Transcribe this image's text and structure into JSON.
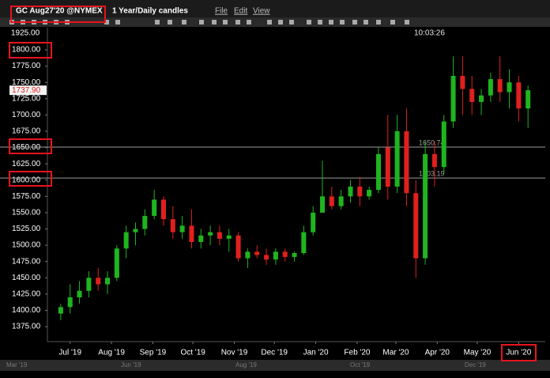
{
  "toolbar": {
    "symbol": "GC Aug27'20 @NYMEX",
    "period": "1 Year/Daily candles",
    "menus": [
      "File",
      "Edit",
      "View"
    ],
    "time": "10:03:26"
  },
  "chart_data": {
    "type": "candlestick",
    "x": [
      0,
      7,
      14,
      21,
      28,
      35,
      42,
      49,
      56,
      63,
      70,
      77,
      84,
      91,
      98,
      105,
      112,
      119,
      126,
      133,
      140,
      147,
      154,
      161,
      168,
      175,
      182,
      189,
      196,
      203,
      210,
      217,
      224,
      231,
      238,
      245,
      252,
      259,
      266,
      273,
      280,
      287,
      294,
      301,
      308,
      315,
      322,
      329,
      336,
      343,
      350
    ],
    "open": [
      1395,
      1405,
      1420,
      1430,
      1450,
      1440,
      1450,
      1495,
      1520,
      1525,
      1545,
      1570,
      1540,
      1520,
      1530,
      1505,
      1515,
      1520,
      1510,
      1515,
      1480,
      1490,
      1485,
      1478,
      1490,
      1482,
      1488,
      1520,
      1550,
      1575,
      1560,
      1575,
      1590,
      1575,
      1585,
      1650,
      1590,
      1675,
      1580,
      1480,
      1640,
      1620,
      1690,
      1760,
      1740,
      1720,
      1730,
      1755,
      1735,
      1750,
      1710
    ],
    "high": [
      1410,
      1440,
      1445,
      1460,
      1465,
      1460,
      1500,
      1530,
      1535,
      1555,
      1585,
      1575,
      1560,
      1545,
      1555,
      1525,
      1530,
      1530,
      1525,
      1520,
      1495,
      1500,
      1495,
      1495,
      1495,
      1490,
      1530,
      1560,
      1630,
      1590,
      1585,
      1600,
      1605,
      1590,
      1650,
      1700,
      1700,
      1710,
      1600,
      1660,
      1660,
      1700,
      1790,
      1790,
      1760,
      1740,
      1765,
      1790,
      1770,
      1760,
      1745
    ],
    "low": [
      1385,
      1395,
      1410,
      1420,
      1430,
      1425,
      1445,
      1480,
      1500,
      1515,
      1540,
      1530,
      1510,
      1510,
      1495,
      1495,
      1500,
      1500,
      1490,
      1475,
      1465,
      1480,
      1470,
      1470,
      1475,
      1475,
      1485,
      1515,
      1550,
      1555,
      1555,
      1565,
      1560,
      1570,
      1580,
      1570,
      1580,
      1560,
      1450,
      1470,
      1590,
      1610,
      1680,
      1700,
      1700,
      1700,
      1720,
      1720,
      1710,
      1690,
      1680
    ],
    "close": [
      1405,
      1420,
      1430,
      1450,
      1440,
      1450,
      1495,
      1520,
      1525,
      1545,
      1570,
      1540,
      1520,
      1530,
      1505,
      1515,
      1520,
      1510,
      1515,
      1480,
      1490,
      1485,
      1478,
      1490,
      1482,
      1488,
      1520,
      1550,
      1575,
      1560,
      1575,
      1590,
      1575,
      1585,
      1640,
      1590,
      1675,
      1580,
      1480,
      1640,
      1620,
      1690,
      1760,
      1740,
      1720,
      1730,
      1755,
      1735,
      1750,
      1710,
      1737.9
    ],
    "up_color": "#1fb51f",
    "down_color": "#e0201e",
    "xlim": [
      -10,
      357
    ],
    "xticks": [
      {
        "value": 7,
        "label": "Jul '19"
      },
      {
        "value": 38,
        "label": "Aug '19"
      },
      {
        "value": 69,
        "label": "Sep '19"
      },
      {
        "value": 99,
        "label": "Oct '19"
      },
      {
        "value": 130,
        "label": "Nov '19"
      },
      {
        "value": 160,
        "label": "Dec '19"
      },
      {
        "value": 191,
        "label": "Jan '20"
      },
      {
        "value": 222,
        "label": "Feb '20"
      },
      {
        "value": 251,
        "label": "Mar '20"
      },
      {
        "value": 282,
        "label": "Apr '20"
      },
      {
        "value": 312,
        "label": "May '20"
      },
      {
        "value": 343,
        "label": "Jun '20"
      }
    ],
    "ylim": [
      1352,
      1834
    ],
    "yticks": [
      {
        "value": 1375,
        "label": "1375.00"
      },
      {
        "value": 1400,
        "label": "1400.00"
      },
      {
        "value": 1425,
        "label": "1425.00"
      },
      {
        "value": 1450,
        "label": "1450.00"
      },
      {
        "value": 1475,
        "label": "1475.00"
      },
      {
        "value": 1500,
        "label": "1500.00"
      },
      {
        "value": 1525,
        "label": "1525.00"
      },
      {
        "value": 1550,
        "label": "1550.00"
      },
      {
        "value": 1575,
        "label": "1575.00"
      },
      {
        "value": 1600,
        "label": "1600.00"
      },
      {
        "value": 1625,
        "label": "1625.00"
      },
      {
        "value": 1650,
        "label": "1650.00"
      },
      {
        "value": 1675,
        "label": "1675.00"
      },
      {
        "value": 1700,
        "label": "1700.00"
      },
      {
        "value": 1725,
        "label": "1725.00"
      },
      {
        "value": 1750,
        "label": "1750.00"
      },
      {
        "value": 1775,
        "label": "1775.00"
      },
      {
        "value": 1800,
        "label": "1800.00"
      }
    ],
    "axis_top_label": "1925.00",
    "last_price": {
      "value": 1737.9,
      "label": "1737.90"
    },
    "levels": [
      1650.74,
      1603.19
    ],
    "navigator_labels": [
      "Mar '19",
      "Jun '19",
      "Aug '19",
      "Oct '19",
      "Dec '19"
    ]
  }
}
